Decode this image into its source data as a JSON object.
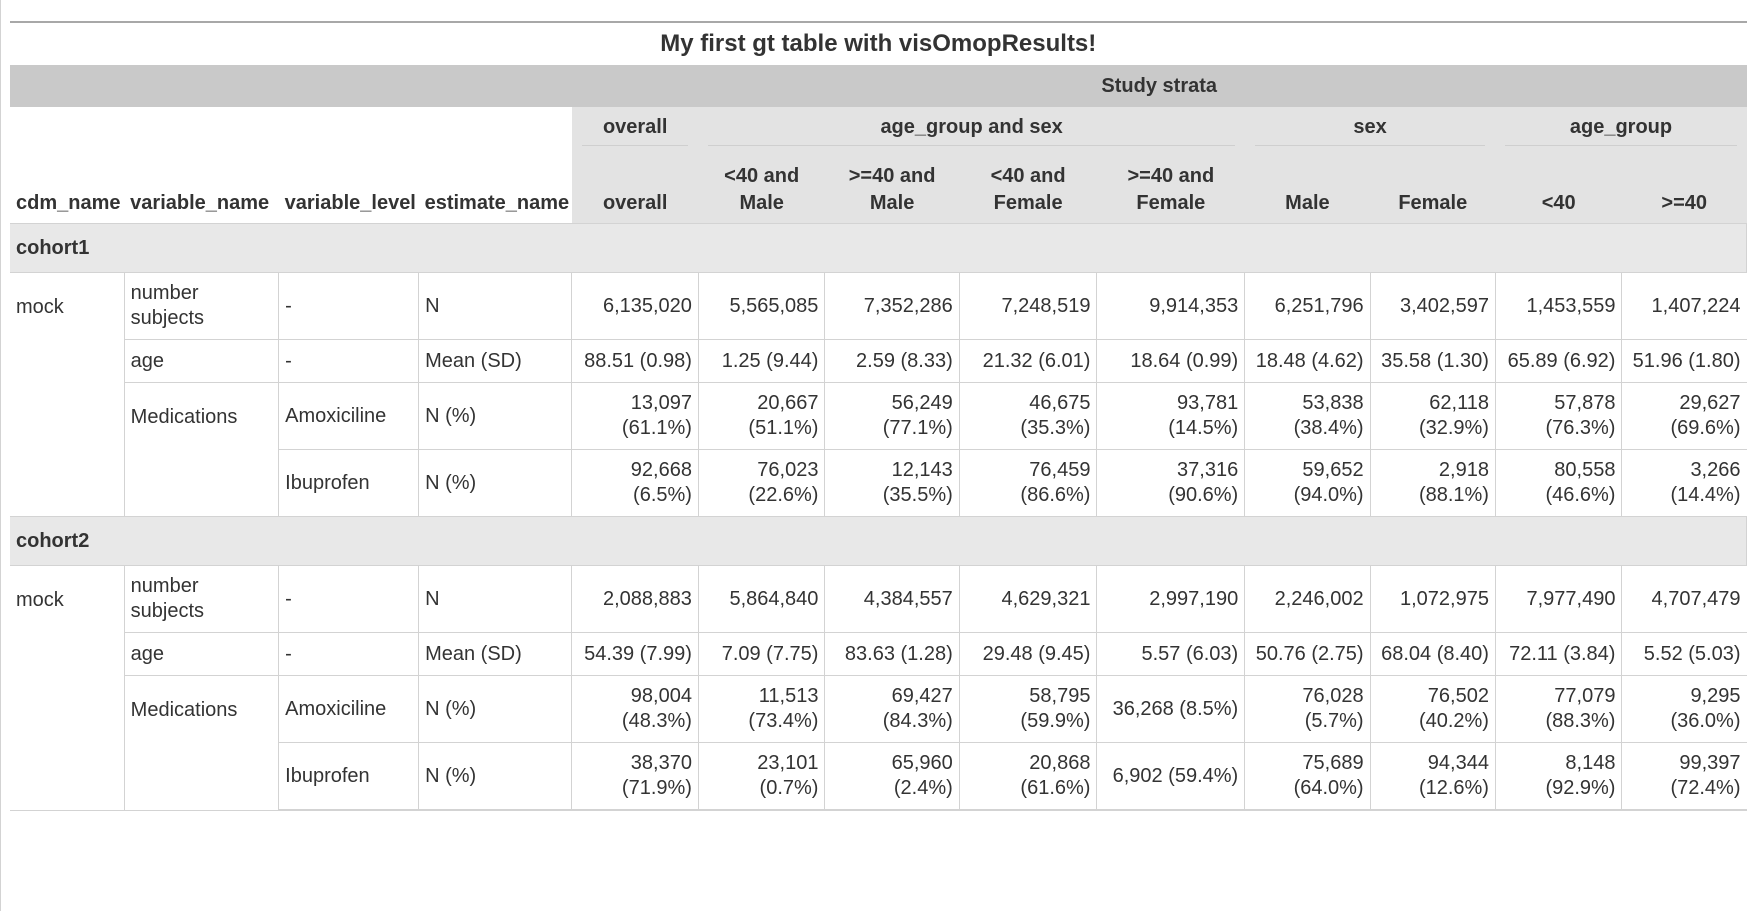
{
  "title": "My first gt table with visOmopResults!",
  "spanner_top": "Study strata",
  "spanners": [
    "overall",
    "age_group and sex",
    "sex",
    "age_group"
  ],
  "stub_headers": [
    "cdm_name",
    "variable_name",
    "variable_level",
    "estimate_name"
  ],
  "columns": [
    [
      "overall"
    ],
    [
      "<40 and",
      "Male"
    ],
    [
      ">=40 and",
      "Male"
    ],
    [
      "<40 and",
      "Female"
    ],
    [
      ">=40 and",
      "Female"
    ],
    [
      "Male"
    ],
    [
      "Female"
    ],
    [
      "<40"
    ],
    [
      ">=40"
    ]
  ],
  "groups": [
    {
      "label": "cohort1",
      "cdm_name": "mock",
      "rows": [
        {
          "variable_name": [
            "number",
            "subjects"
          ],
          "variable_level": "-",
          "estimate_name": "N",
          "values": [
            [
              "6,135,020"
            ],
            [
              "5,565,085"
            ],
            [
              "7,352,286"
            ],
            [
              "7,248,519"
            ],
            [
              "9,914,353"
            ],
            [
              "6,251,796"
            ],
            [
              "3,402,597"
            ],
            [
              "1,453,559"
            ],
            [
              "1,407,224"
            ]
          ]
        },
        {
          "variable_name": [
            "age"
          ],
          "variable_level": "-",
          "estimate_name": "Mean (SD)",
          "values": [
            [
              "88.51 (0.98)"
            ],
            [
              "1.25 (9.44)"
            ],
            [
              "2.59 (8.33)"
            ],
            [
              "21.32 (6.01)"
            ],
            [
              "18.64 (0.99)"
            ],
            [
              "18.48 (4.62)"
            ],
            [
              "35.58 (1.30)"
            ],
            [
              "65.89 (6.92)"
            ],
            [
              "51.96 (1.80)"
            ]
          ]
        },
        {
          "variable_name": [
            "Medications"
          ],
          "variable_level": "Amoxiciline",
          "estimate_name": "N (%)",
          "values": [
            [
              "13,097",
              "(61.1%)"
            ],
            [
              "20,667",
              "(51.1%)"
            ],
            [
              "56,249",
              "(77.1%)"
            ],
            [
              "46,675",
              "(35.3%)"
            ],
            [
              "93,781 (14.5%)"
            ],
            [
              "53,838",
              "(38.4%)"
            ],
            [
              "62,118",
              "(32.9%)"
            ],
            [
              "57,878",
              "(76.3%)"
            ],
            [
              "29,627",
              "(69.6%)"
            ]
          ]
        },
        {
          "variable_name": [],
          "variable_level": "Ibuprofen",
          "estimate_name": "N (%)",
          "values": [
            [
              "92,668",
              "(6.5%)"
            ],
            [
              "76,023",
              "(22.6%)"
            ],
            [
              "12,143",
              "(35.5%)"
            ],
            [
              "76,459",
              "(86.6%)"
            ],
            [
              "37,316 (90.6%)"
            ],
            [
              "59,652",
              "(94.0%)"
            ],
            [
              "2,918",
              "(88.1%)"
            ],
            [
              "80,558",
              "(46.6%)"
            ],
            [
              "3,266",
              "(14.4%)"
            ]
          ]
        }
      ]
    },
    {
      "label": "cohort2",
      "cdm_name": "mock",
      "rows": [
        {
          "variable_name": [
            "number",
            "subjects"
          ],
          "variable_level": "-",
          "estimate_name": "N",
          "values": [
            [
              "2,088,883"
            ],
            [
              "5,864,840"
            ],
            [
              "4,384,557"
            ],
            [
              "4,629,321"
            ],
            [
              "2,997,190"
            ],
            [
              "2,246,002"
            ],
            [
              "1,072,975"
            ],
            [
              "7,977,490"
            ],
            [
              "4,707,479"
            ]
          ]
        },
        {
          "variable_name": [
            "age"
          ],
          "variable_level": "-",
          "estimate_name": "Mean (SD)",
          "values": [
            [
              "54.39 (7.99)"
            ],
            [
              "7.09 (7.75)"
            ],
            [
              "83.63 (1.28)"
            ],
            [
              "29.48 (9.45)"
            ],
            [
              "5.57 (6.03)"
            ],
            [
              "50.76 (2.75)"
            ],
            [
              "68.04 (8.40)"
            ],
            [
              "72.11 (3.84)"
            ],
            [
              "5.52 (5.03)"
            ]
          ]
        },
        {
          "variable_name": [
            "Medications"
          ],
          "variable_level": "Amoxiciline",
          "estimate_name": "N (%)",
          "values": [
            [
              "98,004",
              "(48.3%)"
            ],
            [
              "11,513",
              "(73.4%)"
            ],
            [
              "69,427",
              "(84.3%)"
            ],
            [
              "58,795",
              "(59.9%)"
            ],
            [
              "36,268 (8.5%)"
            ],
            [
              "76,028",
              "(5.7%)"
            ],
            [
              "76,502",
              "(40.2%)"
            ],
            [
              "77,079",
              "(88.3%)"
            ],
            [
              "9,295",
              "(36.0%)"
            ]
          ]
        },
        {
          "variable_name": [],
          "variable_level": "Ibuprofen",
          "estimate_name": "N (%)",
          "values": [
            [
              "38,370",
              "(71.9%)"
            ],
            [
              "23,101",
              "(0.7%)"
            ],
            [
              "65,960 (2.4%)"
            ],
            [
              "20,868",
              "(61.6%)"
            ],
            [
              "6,902 (59.4%)"
            ],
            [
              "75,689",
              "(64.0%)"
            ],
            [
              "94,344",
              "(12.6%)"
            ],
            [
              "8,148",
              "(92.9%)"
            ],
            [
              "99,397",
              "(72.4%)"
            ]
          ]
        }
      ]
    }
  ]
}
